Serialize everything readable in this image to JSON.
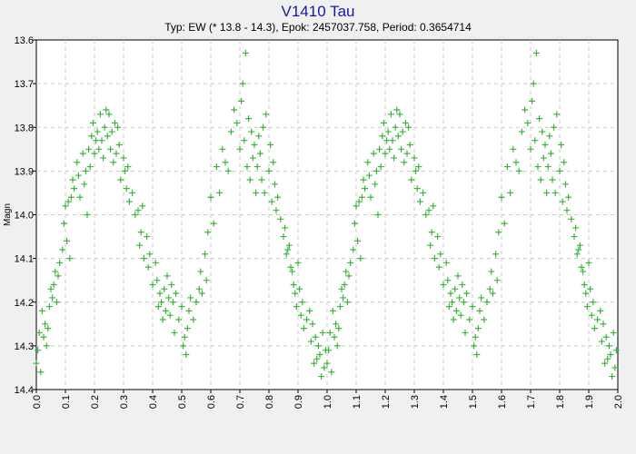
{
  "chart_data": {
    "type": "scatter",
    "title": "V1410 Tau",
    "subtitle": "Typ: EW (* 13.8 - 14.3), Epok: 2457037.758, Period: 0.3654714",
    "xlabel": "",
    "ylabel": "Magn",
    "xlim": [
      0.0,
      2.0
    ],
    "ylim": [
      13.6,
      14.4
    ],
    "y_inverted": true,
    "grid": true,
    "marker": "plus",
    "colors": {
      "points": "#3cb43c",
      "plot_bg": "#ffffff",
      "page_bg": "#f0f0f0",
      "title": "#1a1a9e",
      "grid": "#c8c8c8"
    },
    "x_ticks": [
      "0.0",
      "0.1",
      "0.2",
      "0.3",
      "0.4",
      "0.5",
      "0.6",
      "0.7",
      "0.8",
      "0.9",
      "1.0",
      "1.1",
      "1.2",
      "1.3",
      "1.4",
      "1.5",
      "1.6",
      "1.7",
      "1.8",
      "1.9",
      "2.0"
    ],
    "y_ticks": [
      "13.6",
      "13.7",
      "13.8",
      "13.9",
      "14.0",
      "14.1",
      "14.2",
      "14.3",
      "14.4"
    ],
    "series": [
      {
        "values_note": "",
        "x": [
          0.0,
          0.005,
          0.01,
          0.015,
          0.02,
          0.025,
          0.03,
          0.035,
          0.04,
          0.045,
          0.05,
          0.055,
          0.06,
          0.065,
          0.07,
          0.075,
          0.08,
          0.09,
          0.095,
          0.1,
          0.105,
          0.11,
          0.115,
          0.12,
          0.125,
          0.13,
          0.14,
          0.145,
          0.15,
          0.16,
          0.165,
          0.17,
          0.175,
          0.18,
          0.185,
          0.19,
          0.195,
          0.2,
          0.205,
          0.21,
          0.215,
          0.22,
          0.225,
          0.23,
          0.235,
          0.24,
          0.245,
          0.25,
          0.255,
          0.26,
          0.265,
          0.27,
          0.275,
          0.28,
          0.285,
          0.29,
          0.3,
          0.305,
          0.31,
          0.315,
          0.32,
          0.33,
          0.34,
          0.35,
          0.355,
          0.36,
          0.365,
          0.37,
          0.38,
          0.385,
          0.39,
          0.4,
          0.41,
          0.415,
          0.42,
          0.425,
          0.43,
          0.435,
          0.44,
          0.445,
          0.45,
          0.455,
          0.46,
          0.465,
          0.47,
          0.475,
          0.48,
          0.49,
          0.5,
          0.505,
          0.51,
          0.515,
          0.52,
          0.525,
          0.53,
          0.54,
          0.55,
          0.56,
          0.565,
          0.57,
          0.58,
          0.585,
          0.59,
          0.6,
          0.61,
          0.62,
          0.63,
          0.64,
          0.65,
          0.66,
          0.67,
          0.68,
          0.69,
          0.7,
          0.705,
          0.71,
          0.715,
          0.72,
          0.725,
          0.73,
          0.735,
          0.74,
          0.745,
          0.75,
          0.755,
          0.76,
          0.765,
          0.77,
          0.775,
          0.78,
          0.785,
          0.79,
          0.8,
          0.805,
          0.81,
          0.815,
          0.82,
          0.825,
          0.83,
          0.84,
          0.85,
          0.855,
          0.86,
          0.865,
          0.87,
          0.875,
          0.88,
          0.885,
          0.89,
          0.895,
          0.9,
          0.905,
          0.91,
          0.915,
          0.92,
          0.93,
          0.94,
          0.945,
          0.95,
          0.955,
          0.96,
          0.965,
          0.97,
          0.975,
          0.98,
          0.985,
          0.99,
          0.995
        ],
        "y": [
          14.34,
          14.31,
          14.27,
          14.36,
          14.22,
          14.28,
          14.25,
          14.3,
          14.26,
          14.21,
          14.17,
          14.19,
          14.16,
          14.13,
          14.2,
          14.14,
          14.11,
          14.08,
          14.02,
          13.98,
          14.06,
          13.97,
          14.1,
          13.96,
          13.92,
          13.94,
          13.88,
          13.91,
          13.96,
          13.86,
          13.93,
          13.9,
          14.0,
          13.85,
          13.89,
          13.82,
          13.79,
          13.86,
          13.83,
          13.81,
          13.85,
          13.77,
          13.83,
          13.87,
          13.8,
          13.76,
          13.82,
          13.77,
          13.85,
          13.81,
          13.88,
          13.79,
          13.86,
          13.8,
          13.84,
          13.92,
          13.87,
          13.9,
          13.94,
          13.89,
          13.97,
          13.95,
          14.0,
          13.99,
          14.07,
          14.04,
          13.98,
          14.1,
          14.05,
          14.12,
          14.09,
          14.16,
          14.11,
          14.15,
          14.21,
          14.18,
          14.2,
          14.24,
          14.17,
          14.22,
          14.14,
          14.19,
          14.23,
          14.16,
          14.2,
          14.27,
          14.18,
          14.24,
          14.21,
          14.3,
          14.28,
          14.32,
          14.26,
          14.22,
          14.19,
          14.24,
          14.2,
          14.17,
          14.13,
          14.18,
          14.09,
          14.15,
          14.04,
          13.96,
          14.02,
          13.89,
          13.95,
          13.85,
          13.88,
          13.9,
          13.81,
          13.76,
          13.79,
          13.85,
          13.74,
          13.7,
          13.83,
          13.63,
          13.89,
          13.78,
          13.92,
          13.81,
          13.87,
          13.84,
          13.95,
          13.89,
          13.82,
          13.86,
          13.92,
          13.8,
          13.95,
          13.77,
          13.9,
          13.84,
          13.97,
          13.88,
          13.93,
          13.99,
          13.96,
          14.01,
          14.05,
          14.03,
          14.09,
          14.08,
          14.07,
          14.12,
          14.13,
          14.16,
          14.18,
          14.21,
          14.11,
          14.17,
          14.23,
          14.2,
          14.26,
          14.24,
          14.22,
          14.29,
          14.25,
          14.34,
          14.28,
          14.33,
          14.3,
          14.32,
          14.37,
          14.27,
          14.35,
          14.31
        ]
      }
    ]
  }
}
